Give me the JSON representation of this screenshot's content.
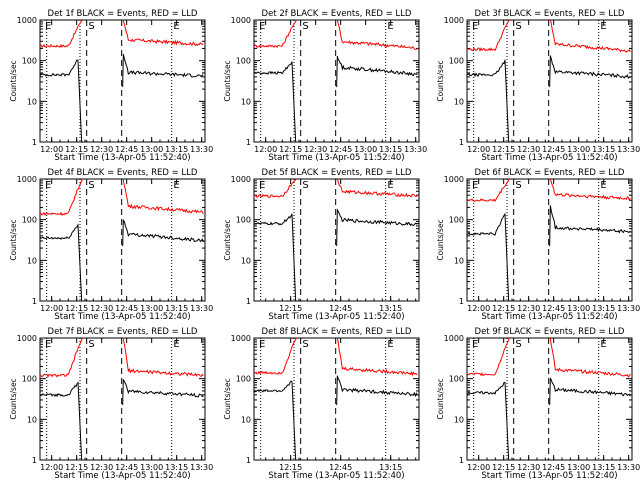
{
  "chart_data": [
    {
      "type": "line",
      "title": "Det 1f BLACK = Events, RED = LLD",
      "markers": [
        "E",
        "S",
        "E"
      ],
      "xlabel": "Start Time (13-Apr-05 11:52:40)",
      "ylabel": "Counts/sec",
      "x_ticks": [
        "12:00",
        "12:15",
        "12:30",
        "12:45",
        "13:00",
        "13:15",
        "13:30"
      ],
      "y_ticks": [
        "1",
        "10",
        "100",
        "1000"
      ],
      "ylim": [
        1,
        1000
      ],
      "log_y": true,
      "series": [
        {
          "color": "#ff0000",
          "before": 230,
          "peak": 1000,
          "after": 330,
          "end": 250
        },
        {
          "color": "#000000",
          "before": 45,
          "peak": 150,
          "after": 52,
          "end": 42
        }
      ]
    },
    {
      "type": "line",
      "title": "Det 2f BLACK = Events, RED = LLD",
      "markers": [
        "E",
        "S",
        "E"
      ],
      "xlabel": "Start Time (13-Apr-05 11:52:40)",
      "ylabel": "Counts/sec",
      "x_ticks": [
        "12:00",
        "12:15",
        "12:30",
        "12:45",
        "13:00",
        "13:15",
        "13:30"
      ],
      "y_ticks": [
        "1",
        "10",
        "100",
        "1000"
      ],
      "ylim": [
        1,
        1000
      ],
      "log_y": true,
      "series": [
        {
          "color": "#ff0000",
          "before": 230,
          "peak": 1000,
          "after": 300,
          "end": 200
        },
        {
          "color": "#000000",
          "before": 50,
          "peak": 120,
          "after": 70,
          "end": 45
        }
      ]
    },
    {
      "type": "line",
      "title": "Det 3f BLACK = Events, RED = LLD",
      "markers": [
        "E",
        "S",
        "E"
      ],
      "xlabel": "Start Time (13-Apr-05 11:52:40)",
      "ylabel": "Counts/sec",
      "x_ticks": [
        "12:00",
        "12:15",
        "12:30",
        "12:45",
        "13:00",
        "13:15",
        "13:30"
      ],
      "y_ticks": [
        "1",
        "10",
        "100",
        "1000"
      ],
      "ylim": [
        1,
        1000
      ],
      "log_y": true,
      "series": [
        {
          "color": "#ff0000",
          "before": 190,
          "peak": 1000,
          "after": 260,
          "end": 170
        },
        {
          "color": "#000000",
          "before": 45,
          "peak": 130,
          "after": 55,
          "end": 40
        }
      ]
    },
    {
      "type": "line",
      "title": "Det 4f BLACK = Events, RED = LLD",
      "markers": [
        "E",
        "S",
        "E"
      ],
      "xlabel": "Start Time (13-Apr-05 11:52:40)",
      "ylabel": "Counts/sec",
      "x_ticks": [
        "12:00",
        "12:15",
        "12:30",
        "12:45",
        "13:00",
        "13:15",
        "13:30"
      ],
      "y_ticks": [
        "1",
        "10",
        "100",
        "1000"
      ],
      "ylim": [
        1,
        1000
      ],
      "log_y": true,
      "series": [
        {
          "color": "#ff0000",
          "before": 140,
          "peak": 1000,
          "after": 220,
          "end": 150
        },
        {
          "color": "#000000",
          "before": 35,
          "peak": 100,
          "after": 45,
          "end": 30
        }
      ]
    },
    {
      "type": "line",
      "title": "Det 5f BLACK = Events, RED = LLD",
      "markers": [
        "E",
        "S",
        "E"
      ],
      "xlabel": "Start Time (13-Apr-05 11:52:40)",
      "ylabel": "Counts/sec",
      "x_ticks": [
        "12:15",
        "12:45",
        "13:15"
      ],
      "y_ticks": [
        "1",
        "10",
        "100",
        "1000"
      ],
      "ylim": [
        1,
        1000
      ],
      "log_y": true,
      "series": [
        {
          "color": "#ff0000",
          "before": 380,
          "peak": 1000,
          "after": 500,
          "end": 380
        },
        {
          "color": "#000000",
          "before": 80,
          "peak": 160,
          "after": 100,
          "end": 75
        }
      ]
    },
    {
      "type": "line",
      "title": "Det 6f BLACK = Events, RED = LLD",
      "markers": [
        "E",
        "S",
        "E"
      ],
      "xlabel": "Start Time (13-Apr-05 11:52:40)",
      "ylabel": "Counts/sec",
      "x_ticks": [
        "12:00",
        "12:15",
        "12:30",
        "12:45",
        "13:00",
        "13:15",
        "13:30"
      ],
      "y_ticks": [
        "1",
        "10",
        "100",
        "1000"
      ],
      "ylim": [
        1,
        1000
      ],
      "log_y": true,
      "series": [
        {
          "color": "#ff0000",
          "before": 300,
          "peak": 1000,
          "after": 420,
          "end": 330
        },
        {
          "color": "#000000",
          "before": 45,
          "peak": 220,
          "after": 65,
          "end": 50
        }
      ]
    },
    {
      "type": "line",
      "title": "Det 7f BLACK = Events, RED = LLD",
      "markers": [
        "E",
        "S",
        "E"
      ],
      "xlabel": "Start Time (13-Apr-05 11:52:40)",
      "ylabel": "Counts/sec",
      "x_ticks": [
        "12:00",
        "12:15",
        "12:30",
        "12:45",
        "13:00",
        "13:15",
        "13:30"
      ],
      "y_ticks": [
        "1",
        "10",
        "100",
        "1000"
      ],
      "ylim": [
        1,
        1000
      ],
      "log_y": true,
      "series": [
        {
          "color": "#ff0000",
          "before": 120,
          "peak": 1000,
          "after": 160,
          "end": 120
        },
        {
          "color": "#000000",
          "before": 40,
          "peak": 100,
          "after": 50,
          "end": 38
        }
      ]
    },
    {
      "type": "line",
      "title": "Det 8f BLACK = Events, RED = LLD",
      "markers": [
        "E",
        "S",
        "E"
      ],
      "xlabel": "Start Time (13-Apr-05 11:52:40)",
      "ylabel": "Counts/sec",
      "x_ticks": [
        "12:15",
        "12:45",
        "13:15"
      ],
      "y_ticks": [
        "1",
        "10",
        "100",
        "1000"
      ],
      "ylim": [
        1,
        1000
      ],
      "log_y": true,
      "series": [
        {
          "color": "#ff0000",
          "before": 140,
          "peak": 1000,
          "after": 180,
          "end": 130
        },
        {
          "color": "#000000",
          "before": 50,
          "peak": 110,
          "after": 55,
          "end": 40
        }
      ]
    },
    {
      "type": "line",
      "title": "Det 9f BLACK = Events, RED = LLD",
      "markers": [
        "E",
        "S",
        "E"
      ],
      "xlabel": "Start Time (13-Apr-05 11:52:40)",
      "ylabel": "Counts/sec",
      "x_ticks": [
        "12:00",
        "12:15",
        "12:30",
        "12:45",
        "13:00",
        "13:15",
        "13:30"
      ],
      "y_ticks": [
        "1",
        "10",
        "100",
        "1000"
      ],
      "ylim": [
        1,
        1000
      ],
      "log_y": true,
      "series": [
        {
          "color": "#ff0000",
          "before": 130,
          "peak": 1000,
          "after": 170,
          "end": 120
        },
        {
          "color": "#000000",
          "before": 45,
          "peak": 100,
          "after": 55,
          "end": 40
        }
      ]
    }
  ]
}
